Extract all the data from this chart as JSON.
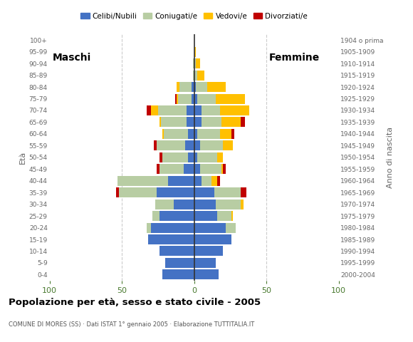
{
  "age_groups": [
    "0-4",
    "5-9",
    "10-14",
    "15-19",
    "20-24",
    "25-29",
    "30-34",
    "35-39",
    "40-44",
    "45-49",
    "50-54",
    "55-59",
    "60-64",
    "65-69",
    "70-74",
    "75-79",
    "80-84",
    "85-89",
    "90-94",
    "95-99",
    "100+"
  ],
  "birth_years": [
    "2000-2004",
    "1995-1999",
    "1990-1994",
    "1985-1989",
    "1980-1984",
    "1975-1979",
    "1970-1974",
    "1965-1969",
    "1960-1964",
    "1955-1959",
    "1950-1954",
    "1945-1949",
    "1940-1944",
    "1935-1939",
    "1930-1934",
    "1925-1929",
    "1920-1924",
    "1915-1919",
    "1910-1914",
    "1905-1909",
    "1904 o prima"
  ],
  "males": {
    "celibi": [
      22,
      20,
      24,
      32,
      30,
      24,
      14,
      26,
      18,
      7,
      4,
      6,
      4,
      5,
      5,
      2,
      2,
      0,
      0,
      0,
      0
    ],
    "coniugati": [
      0,
      0,
      0,
      0,
      3,
      5,
      13,
      26,
      35,
      17,
      18,
      20,
      17,
      18,
      20,
      9,
      8,
      1,
      1,
      0,
      0
    ],
    "vedovi": [
      0,
      0,
      0,
      0,
      0,
      0,
      0,
      0,
      0,
      0,
      0,
      0,
      1,
      1,
      5,
      1,
      2,
      0,
      0,
      0,
      0
    ],
    "divorziati": [
      0,
      0,
      0,
      0,
      0,
      0,
      0,
      2,
      0,
      2,
      2,
      2,
      0,
      0,
      3,
      1,
      0,
      0,
      0,
      0,
      0
    ]
  },
  "females": {
    "nubili": [
      17,
      15,
      20,
      26,
      22,
      16,
      15,
      14,
      5,
      4,
      2,
      4,
      2,
      5,
      5,
      2,
      1,
      0,
      0,
      0,
      0
    ],
    "coniugate": [
      0,
      0,
      0,
      0,
      7,
      10,
      17,
      18,
      7,
      15,
      14,
      16,
      16,
      14,
      13,
      13,
      8,
      2,
      1,
      0,
      0
    ],
    "vedove": [
      0,
      0,
      0,
      0,
      0,
      1,
      2,
      0,
      4,
      1,
      4,
      7,
      8,
      13,
      20,
      20,
      13,
      5,
      3,
      1,
      0
    ],
    "divorziate": [
      0,
      0,
      0,
      0,
      0,
      0,
      0,
      4,
      2,
      2,
      0,
      0,
      2,
      3,
      0,
      0,
      0,
      0,
      0,
      0,
      0
    ]
  },
  "colors": {
    "celibi": "#4472c4",
    "coniugati": "#b8cda3",
    "vedovi": "#ffc000",
    "divorziati": "#c00000"
  },
  "legend_labels": [
    "Celibi/Nubili",
    "Coniugati/e",
    "Vedovi/e",
    "Divorziati/e"
  ],
  "title": "Popolazione per età, sesso e stato civile - 2005",
  "subtitle": "COMUNE DI MORES (SS) · Dati ISTAT 1° gennaio 2005 · Elaborazione TUTTITALIA.IT",
  "maschi_label": "Maschi",
  "femmine_label": "Femmine",
  "ylabel_left": "Età",
  "ylabel_right": "Anno di nascita",
  "xlim": 100,
  "bg_color": "#ffffff",
  "grid_color": "#cccccc"
}
